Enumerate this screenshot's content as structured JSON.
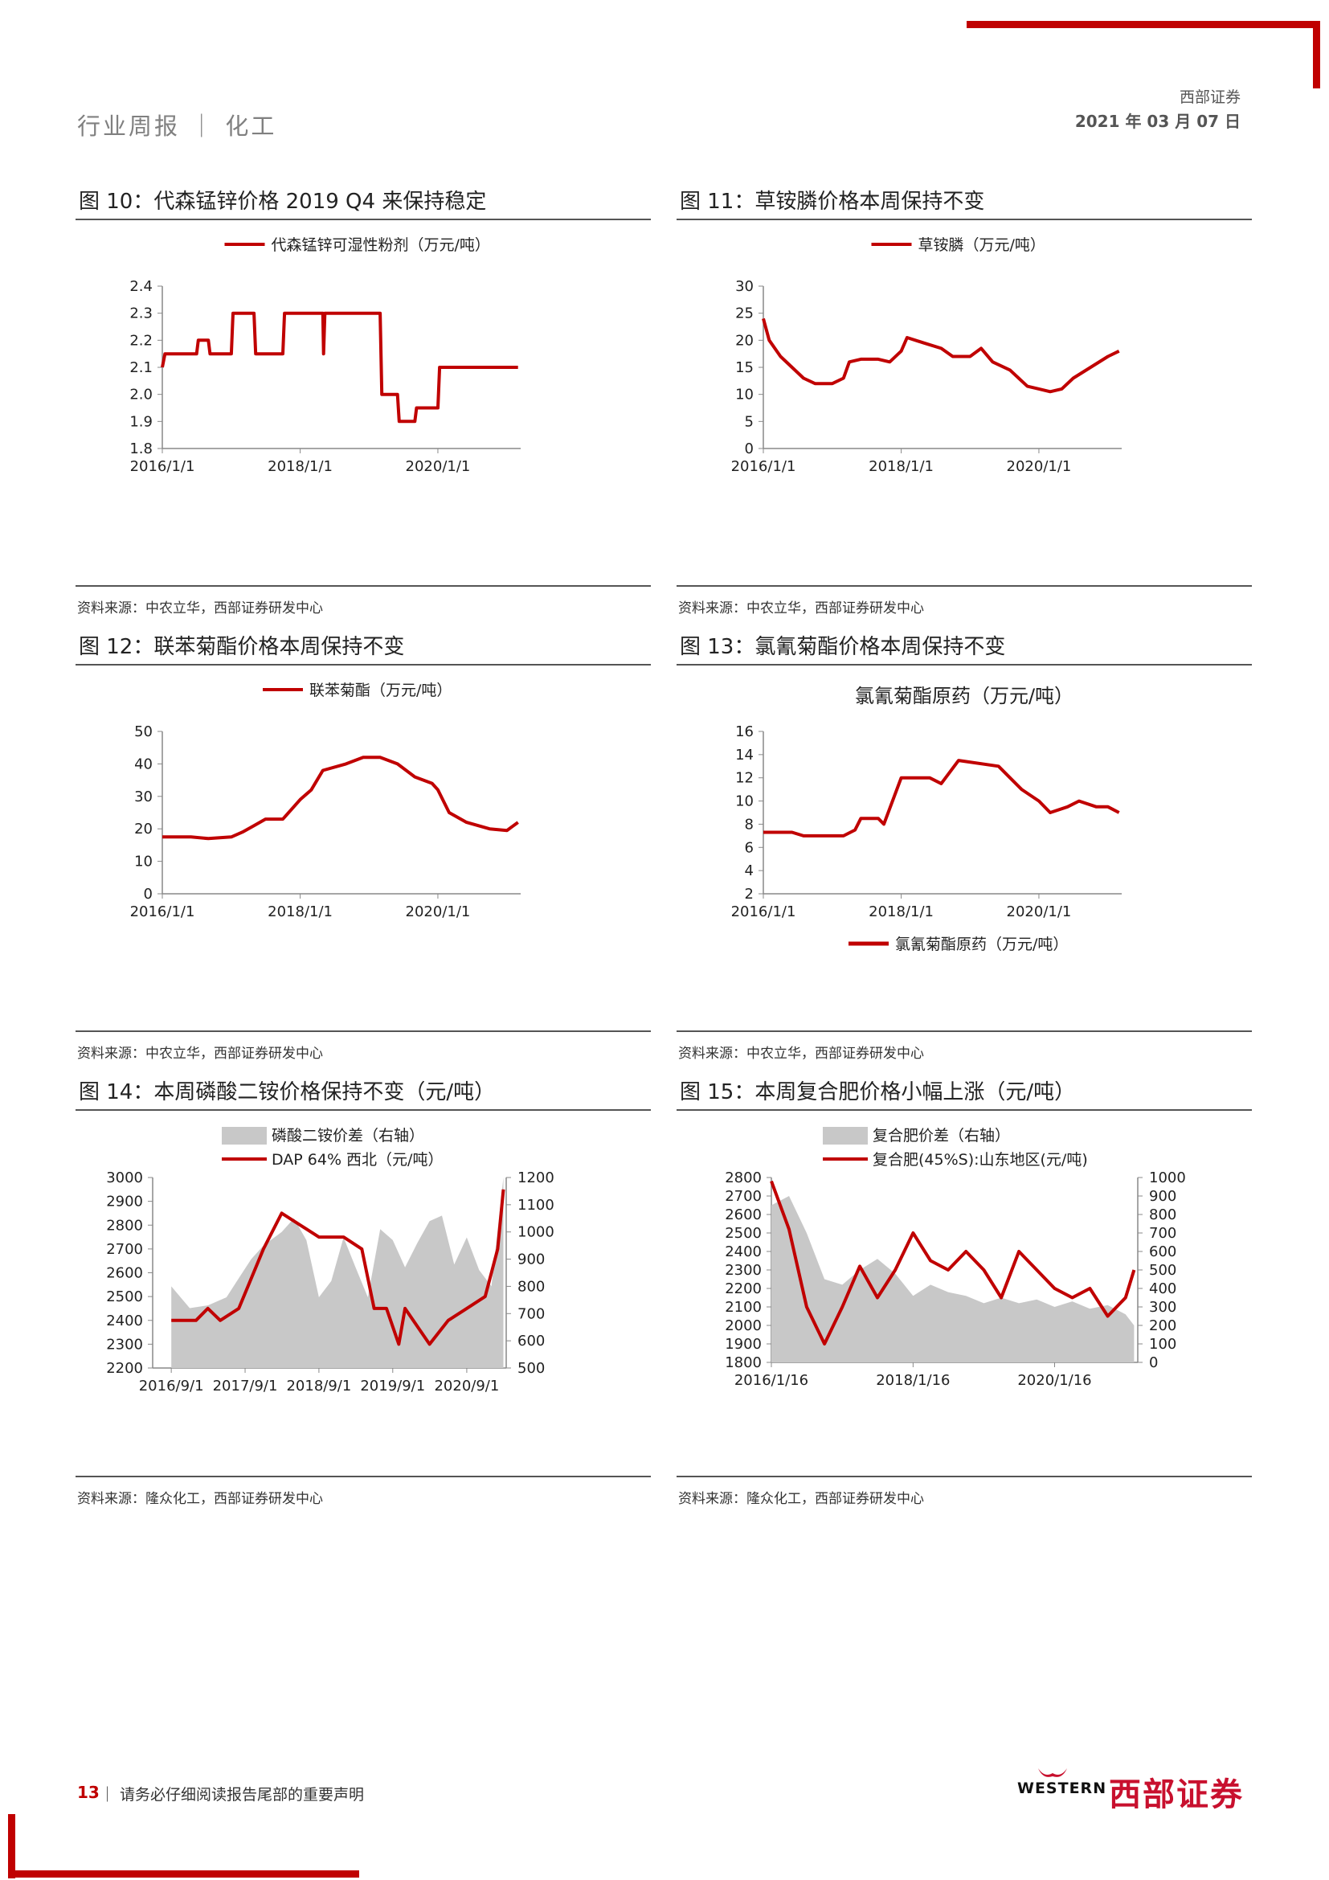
{
  "header": {
    "section": "行业周报 ｜ 化工",
    "company": "西部证券",
    "date": "2021 年 03 月 07 日"
  },
  "footer": {
    "page": "13",
    "note": "｜ 请务必仔细阅读报告尾部的重要声明",
    "logo_en": "WESTERN",
    "logo_cn": "西部证券"
  },
  "colors": {
    "accent": "#c00000",
    "area": "#c8c8c8"
  },
  "figures": [
    {
      "title": "图 10：代森锰锌价格 2019 Q4 来保持稳定",
      "source": "资料来源：中农立华，西部证券研发中心"
    },
    {
      "title": "图 11：草铵膦价格本周保持不变",
      "source": "资料来源：中农立华，西部证券研发中心"
    },
    {
      "title": "图 12：联苯菊酯价格本周保持不变",
      "source": "资料来源：中农立华，西部证券研发中心"
    },
    {
      "title": "图 13：氯氰菊酯价格本周保持不变",
      "source": "资料来源：中农立华，西部证券研发中心"
    },
    {
      "title": "图 14：本周磷酸二铵价格保持不变（元/吨）",
      "source": "资料来源：隆众化工，西部证券研发中心"
    },
    {
      "title": "图 15：本周复合肥价格小幅上涨（元/吨）",
      "source": "资料来源：隆众化工，西部证券研发中心"
    }
  ],
  "chart_data": [
    {
      "type": "line",
      "legend_position": "top",
      "series": [
        {
          "name": "代森锰锌可湿性粉剂（万元/吨）",
          "color": "#c00000",
          "points": [
            [
              "2016/1/1",
              2.1
            ],
            [
              "2016/1/15",
              2.15
            ],
            [
              "2016/7/1",
              2.15
            ],
            [
              "2016/7/10",
              2.2
            ],
            [
              "2016/9/1",
              2.2
            ],
            [
              "2016/9/10",
              2.15
            ],
            [
              "2017/1/1",
              2.15
            ],
            [
              "2017/1/10",
              2.3
            ],
            [
              "2017/5/1",
              2.3
            ],
            [
              "2017/5/10",
              2.15
            ],
            [
              "2017/10/1",
              2.15
            ],
            [
              "2017/10/10",
              2.3
            ],
            [
              "2018/5/1",
              2.3
            ],
            [
              "2018/5/5",
              2.15
            ],
            [
              "2018/5/12",
              2.3
            ],
            [
              "2019/3/1",
              2.3
            ],
            [
              "2019/3/10",
              2.0
            ],
            [
              "2019/6/1",
              2.0
            ],
            [
              "2019/6/10",
              1.9
            ],
            [
              "2019/9/1",
              1.9
            ],
            [
              "2019/9/10",
              1.95
            ],
            [
              "2020/1/1",
              1.95
            ],
            [
              "2020/1/10",
              2.1
            ],
            [
              "2021/3/1",
              2.1
            ]
          ]
        }
      ],
      "x_ticks": [
        "2016/1/1",
        "2018/1/1",
        "2020/1/1"
      ],
      "y_ticks": [
        "1.8",
        "1.9",
        "2.0",
        "2.1",
        "2.2",
        "2.3",
        "2.4"
      ],
      "ylim": [
        1.8,
        2.4
      ]
    },
    {
      "type": "line",
      "legend_position": "top",
      "series": [
        {
          "name": "草铵膦（万元/吨）",
          "color": "#c00000",
          "points": [
            [
              "2016/1/1",
              24
            ],
            [
              "2016/2/1",
              20
            ],
            [
              "2016/4/1",
              17
            ],
            [
              "2016/6/1",
              15
            ],
            [
              "2016/8/1",
              13
            ],
            [
              "2016/10/1",
              12
            ],
            [
              "2017/1/1",
              12
            ],
            [
              "2017/3/1",
              13
            ],
            [
              "2017/4/1",
              16
            ],
            [
              "2017/6/1",
              16.5
            ],
            [
              "2017/9/1",
              16.5
            ],
            [
              "2017/11/1",
              16
            ],
            [
              "2018/1/1",
              18
            ],
            [
              "2018/2/1",
              20.5
            ],
            [
              "2018/5/1",
              19.5
            ],
            [
              "2018/8/1",
              18.5
            ],
            [
              "2018/10/1",
              17
            ],
            [
              "2019/1/1",
              17
            ],
            [
              "2019/3/1",
              18.5
            ],
            [
              "2019/5/1",
              16
            ],
            [
              "2019/8/1",
              14.5
            ],
            [
              "2019/11/1",
              11.5
            ],
            [
              "2020/1/1",
              11
            ],
            [
              "2020/3/1",
              10.5
            ],
            [
              "2020/5/1",
              11
            ],
            [
              "2020/7/1",
              13
            ],
            [
              "2020/10/1",
              15
            ],
            [
              "2021/1/1",
              17
            ],
            [
              "2021/3/1",
              18
            ]
          ]
        }
      ],
      "x_ticks": [
        "2016/1/1",
        "2018/1/1",
        "2020/1/1"
      ],
      "y_ticks": [
        "0",
        "5",
        "10",
        "15",
        "20",
        "25",
        "30"
      ],
      "ylim": [
        0,
        30
      ]
    },
    {
      "type": "line",
      "legend_position": "top",
      "series": [
        {
          "name": "联苯菊酯（万元/吨）",
          "color": "#c00000",
          "points": [
            [
              "2016/1/1",
              17.5
            ],
            [
              "2016/6/1",
              17.5
            ],
            [
              "2016/9/1",
              17
            ],
            [
              "2017/1/1",
              17.5
            ],
            [
              "2017/3/1",
              19
            ],
            [
              "2017/5/1",
              21
            ],
            [
              "2017/7/1",
              23
            ],
            [
              "2017/10/1",
              23
            ],
            [
              "2018/1/1",
              29
            ],
            [
              "2018/3/1",
              32
            ],
            [
              "2018/5/1",
              38
            ],
            [
              "2018/9/1",
              40
            ],
            [
              "2018/12/1",
              42
            ],
            [
              "2019/3/1",
              42
            ],
            [
              "2019/6/1",
              40
            ],
            [
              "2019/9/1",
              36
            ],
            [
              "2019/12/1",
              34
            ],
            [
              "2020/1/1",
              32
            ],
            [
              "2020/3/1",
              25
            ],
            [
              "2020/6/1",
              22
            ],
            [
              "2020/10/1",
              20
            ],
            [
              "2021/1/1",
              19.5
            ],
            [
              "2021/3/1",
              22
            ]
          ]
        }
      ],
      "x_ticks": [
        "2016/1/1",
        "2018/1/1",
        "2020/1/1"
      ],
      "y_ticks": [
        "0",
        "10",
        "20",
        "30",
        "40",
        "50"
      ],
      "ylim": [
        0,
        50
      ]
    },
    {
      "type": "line",
      "title": "氯氰菊酯原药（万元/吨）",
      "legend_position": "bottom",
      "series": [
        {
          "name": "氯氰菊酯原药（万元/吨）",
          "color": "#c00000",
          "points": [
            [
              "2016/1/1",
              7.3
            ],
            [
              "2016/6/1",
              7.3
            ],
            [
              "2016/8/1",
              7
            ],
            [
              "2017/3/1",
              7
            ],
            [
              "2017/5/1",
              7.5
            ],
            [
              "2017/6/1",
              8.5
            ],
            [
              "2017/9/1",
              8.5
            ],
            [
              "2017/10/1",
              8
            ],
            [
              "2018/1/1",
              12
            ],
            [
              "2018/6/1",
              12
            ],
            [
              "2018/8/1",
              11.5
            ],
            [
              "2018/11/1",
              13.5
            ],
            [
              "2019/6/1",
              13
            ],
            [
              "2019/8/1",
              12
            ],
            [
              "2019/10/1",
              11
            ],
            [
              "2020/1/1",
              10
            ],
            [
              "2020/3/1",
              9
            ],
            [
              "2020/6/1",
              9.5
            ],
            [
              "2020/8/1",
              10
            ],
            [
              "2020/11/1",
              9.5
            ],
            [
              "2021/1/1",
              9.5
            ],
            [
              "2021/3/1",
              9
            ]
          ]
        }
      ],
      "x_ticks": [
        "2016/1/1",
        "2018/1/1",
        "2020/1/1"
      ],
      "y_ticks": [
        "2",
        "4",
        "6",
        "8",
        "10",
        "12",
        "14",
        "16"
      ],
      "ylim": [
        2,
        16
      ]
    },
    {
      "type": "area",
      "legend_position": "top-left",
      "series": [
        {
          "name": "磷酸二铵价差（右轴）",
          "axis": "right",
          "kind": "area",
          "color": "#c8c8c8",
          "points": [
            [
              "2016/9/1",
              800
            ],
            [
              "2016/12/1",
              720
            ],
            [
              "2017/3/1",
              730
            ],
            [
              "2017/6/1",
              760
            ],
            [
              "2017/8/1",
              830
            ],
            [
              "2017/10/1",
              900
            ],
            [
              "2017/12/1",
              950
            ],
            [
              "2018/3/1",
              1000
            ],
            [
              "2018/5/1",
              1050
            ],
            [
              "2018/7/1",
              970
            ],
            [
              "2018/9/1",
              760
            ],
            [
              "2018/11/1",
              820
            ],
            [
              "2019/1/1",
              980
            ],
            [
              "2019/3/1",
              870
            ],
            [
              "2019/5/1",
              760
            ],
            [
              "2019/7/1",
              1010
            ],
            [
              "2019/9/1",
              970
            ],
            [
              "2019/11/1",
              870
            ],
            [
              "2020/1/1",
              960
            ],
            [
              "2020/3/1",
              1040
            ],
            [
              "2020/5/1",
              1060
            ],
            [
              "2020/7/1",
              880
            ],
            [
              "2020/9/1",
              980
            ],
            [
              "2020/11/1",
              860
            ],
            [
              "2021/1/1",
              800
            ],
            [
              "2021/3/1",
              1200
            ]
          ]
        },
        {
          "name": "DAP 64% 西北（元/吨）",
          "axis": "left",
          "kind": "line",
          "color": "#c00000",
          "points": [
            [
              "2016/9/1",
              2400
            ],
            [
              "2017/1/1",
              2400
            ],
            [
              "2017/3/1",
              2450
            ],
            [
              "2017/5/1",
              2400
            ],
            [
              "2017/8/1",
              2450
            ],
            [
              "2017/12/1",
              2700
            ],
            [
              "2018/3/1",
              2850
            ],
            [
              "2018/6/1",
              2800
            ],
            [
              "2018/9/1",
              2750
            ],
            [
              "2019/1/1",
              2750
            ],
            [
              "2019/4/1",
              2700
            ],
            [
              "2019/6/1",
              2450
            ],
            [
              "2019/8/1",
              2450
            ],
            [
              "2019/10/1",
              2300
            ],
            [
              "2019/11/1",
              2450
            ],
            [
              "2020/3/1",
              2300
            ],
            [
              "2020/6/1",
              2400
            ],
            [
              "2020/9/1",
              2450
            ],
            [
              "2020/12/1",
              2500
            ],
            [
              "2021/2/1",
              2700
            ],
            [
              "2021/3/1",
              2950
            ]
          ]
        }
      ],
      "x_ticks": [
        "2016/9/1",
        "2017/9/1",
        "2018/9/1",
        "2019/9/1",
        "2020/9/1"
      ],
      "y_ticks_left": [
        "2200",
        "2300",
        "2400",
        "2500",
        "2600",
        "2700",
        "2800",
        "2900",
        "3000"
      ],
      "y_ticks_right": [
        "500",
        "600",
        "700",
        "800",
        "900",
        "1000",
        "1100",
        "1200"
      ],
      "ylim_left": [
        2200,
        3000
      ],
      "ylim_right": [
        500,
        1200
      ]
    },
    {
      "type": "area",
      "legend_position": "top-left",
      "series": [
        {
          "name": "复合肥价差（右轴）",
          "axis": "right",
          "kind": "area",
          "color": "#c8c8c8",
          "points": [
            [
              "2016/1/16",
              850
            ],
            [
              "2016/4/16",
              900
            ],
            [
              "2016/7/16",
              700
            ],
            [
              "2016/10/16",
              450
            ],
            [
              "2017/1/16",
              420
            ],
            [
              "2017/4/16",
              500
            ],
            [
              "2017/7/16",
              560
            ],
            [
              "2017/10/16",
              480
            ],
            [
              "2018/1/16",
              360
            ],
            [
              "2018/4/16",
              420
            ],
            [
              "2018/7/16",
              380
            ],
            [
              "2018/10/16",
              360
            ],
            [
              "2019/1/16",
              320
            ],
            [
              "2019/4/16",
              350
            ],
            [
              "2019/7/16",
              320
            ],
            [
              "2019/10/16",
              340
            ],
            [
              "2020/1/16",
              300
            ],
            [
              "2020/4/16",
              330
            ],
            [
              "2020/7/16",
              290
            ],
            [
              "2020/10/16",
              310
            ],
            [
              "2021/1/16",
              260
            ],
            [
              "2021/3/1",
              200
            ]
          ]
        },
        {
          "name": "复合肥(45%S):山东地区(元/吨)",
          "axis": "left",
          "kind": "line",
          "color": "#c00000",
          "points": [
            [
              "2016/1/16",
              2780
            ],
            [
              "2016/4/16",
              2520
            ],
            [
              "2016/7/16",
              2100
            ],
            [
              "2016/10/16",
              1900
            ],
            [
              "2017/1/16",
              2100
            ],
            [
              "2017/4/16",
              2320
            ],
            [
              "2017/7/16",
              2150
            ],
            [
              "2017/10/16",
              2300
            ],
            [
              "2018/1/16",
              2500
            ],
            [
              "2018/4/16",
              2350
            ],
            [
              "2018/7/16",
              2300
            ],
            [
              "2018/10/16",
              2400
            ],
            [
              "2019/1/16",
              2300
            ],
            [
              "2019/4/16",
              2150
            ],
            [
              "2019/7/16",
              2400
            ],
            [
              "2019/10/16",
              2300
            ],
            [
              "2020/1/16",
              2200
            ],
            [
              "2020/4/16",
              2150
            ],
            [
              "2020/7/16",
              2200
            ],
            [
              "2020/10/16",
              2050
            ],
            [
              "2021/1/16",
              2150
            ],
            [
              "2021/3/1",
              2300
            ]
          ]
        }
      ],
      "x_ticks": [
        "2016/1/16",
        "2018/1/16",
        "2020/1/16"
      ],
      "y_ticks_left": [
        "1800",
        "1900",
        "2000",
        "2100",
        "2200",
        "2300",
        "2400",
        "2500",
        "2600",
        "2700",
        "2800"
      ],
      "y_ticks_right": [
        "0",
        "100",
        "200",
        "300",
        "400",
        "500",
        "600",
        "700",
        "800",
        "900",
        "1000"
      ],
      "ylim_left": [
        1800,
        2800
      ],
      "ylim_right": [
        0,
        1000
      ]
    }
  ]
}
